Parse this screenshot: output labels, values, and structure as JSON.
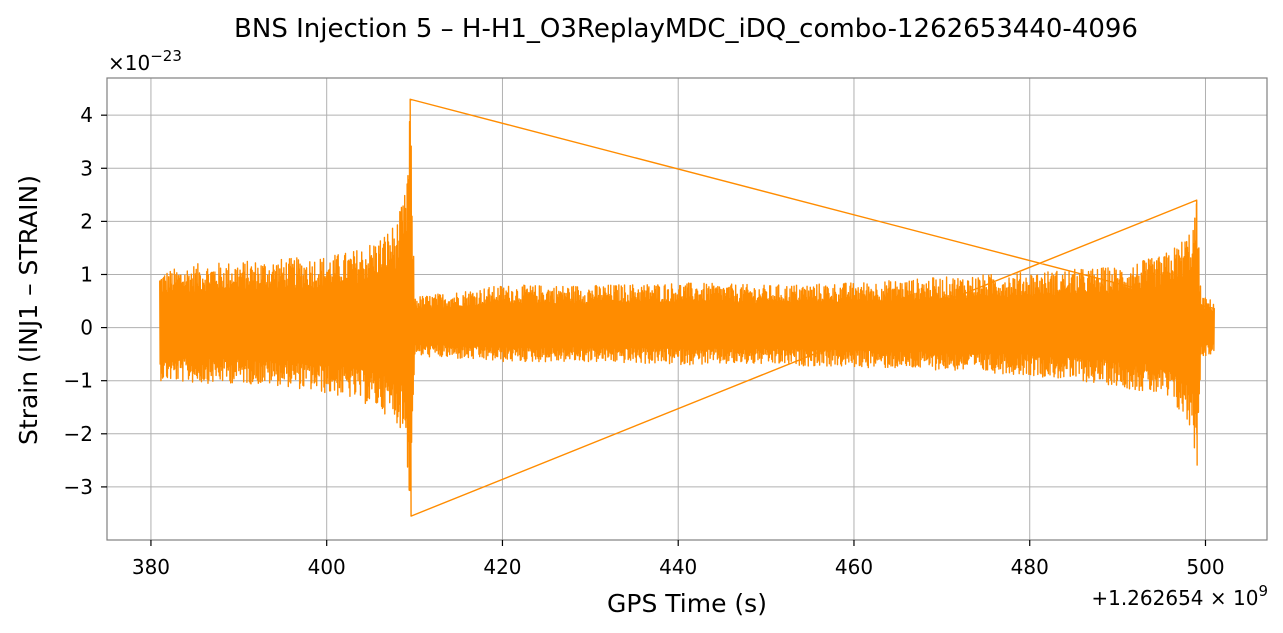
{
  "chart_data": {
    "type": "line",
    "title": "BNS Injection 5 – H-H1_O3ReplayMDC_iDQ_combo-1262653440-4096",
    "xlabel": "GPS Time (s)",
    "ylabel": "Strain (INJ1 – STRAIN)",
    "x_offset_label": "+1.262654 × 10^9",
    "y_scale_label": "×10^−23",
    "x_offset_value": 1262654000,
    "y_scale_value": 1e-23,
    "xlim": [
      375,
      507
    ],
    "ylim": [
      -4,
      4.7
    ],
    "x_ticks": [
      380,
      400,
      420,
      440,
      460,
      480,
      500
    ],
    "x_tick_labels": [
      "380",
      "400",
      "420",
      "440",
      "460",
      "480",
      "500"
    ],
    "y_ticks": [
      -3,
      -2,
      -1,
      0,
      1,
      2,
      3,
      4
    ],
    "y_tick_labels": [
      "−3",
      "−2",
      "−1",
      "0",
      "1",
      "2",
      "3",
      "4"
    ],
    "grid": true,
    "legend": "none",
    "color": "#ff8c00",
    "series": [
      {
        "x": [
          381,
          385,
          390,
          395,
          400,
          403,
          406,
          408,
          409,
          409.5,
          410,
          411,
          420,
          430,
          440,
          450,
          460,
          470,
          480,
          490,
          495,
          497,
          498.5,
          499,
          499.5,
          501
        ],
        "y_upper": [
          1.05,
          1.2,
          1.25,
          1.3,
          1.35,
          1.45,
          1.7,
          2.0,
          2.6,
          4.3,
          0.6,
          0.6,
          0.8,
          0.8,
          0.85,
          0.8,
          0.85,
          0.95,
          1.05,
          1.15,
          1.35,
          1.6,
          1.9,
          2.4,
          0.6,
          0.5
        ],
        "y_lower": [
          -1.0,
          -1.05,
          -1.05,
          -1.1,
          -1.25,
          -1.35,
          -1.55,
          -1.8,
          -2.1,
          -3.55,
          -0.55,
          -0.55,
          -0.65,
          -0.65,
          -0.7,
          -0.7,
          -0.75,
          -0.8,
          -0.9,
          -1.1,
          -1.3,
          -1.6,
          -2.0,
          -2.6,
          -0.55,
          -0.5
        ]
      }
    ]
  }
}
